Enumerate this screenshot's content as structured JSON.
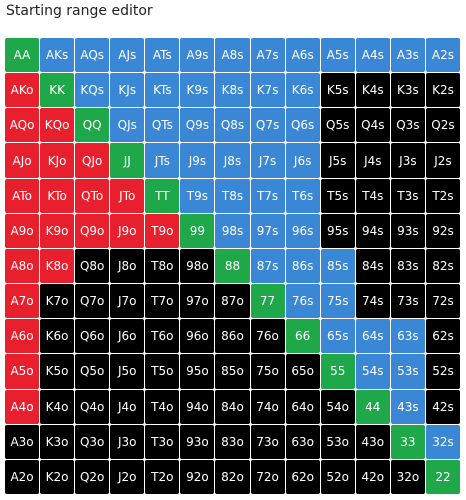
{
  "title": "Starting range editor",
  "ranks": [
    "A",
    "K",
    "Q",
    "J",
    "T",
    "9",
    "8",
    "7",
    "6",
    "5",
    "4",
    "3",
    "2"
  ],
  "colors": {
    "pair": "#1ea84a",
    "suited": "#3a87d6",
    "offsuit": "#e8202e",
    "unselected": "#000000"
  },
  "grid": [
    [
      "pair",
      "suited",
      "suited",
      "suited",
      "suited",
      "suited",
      "suited",
      "suited",
      "suited",
      "suited",
      "suited",
      "suited",
      "suited"
    ],
    [
      "offsuit",
      "pair",
      "suited",
      "suited",
      "suited",
      "suited",
      "suited",
      "suited",
      "suited",
      "unselected",
      "unselected",
      "unselected",
      "unselected"
    ],
    [
      "offsuit",
      "offsuit",
      "pair",
      "suited",
      "suited",
      "suited",
      "suited",
      "suited",
      "suited",
      "unselected",
      "unselected",
      "unselected",
      "unselected"
    ],
    [
      "offsuit",
      "offsuit",
      "offsuit",
      "pair",
      "suited",
      "suited",
      "suited",
      "suited",
      "suited",
      "unselected",
      "unselected",
      "unselected",
      "unselected"
    ],
    [
      "offsuit",
      "offsuit",
      "offsuit",
      "offsuit",
      "pair",
      "suited",
      "suited",
      "suited",
      "suited",
      "unselected",
      "unselected",
      "unselected",
      "unselected"
    ],
    [
      "offsuit",
      "offsuit",
      "offsuit",
      "offsuit",
      "offsuit",
      "pair",
      "suited",
      "suited",
      "suited",
      "unselected",
      "unselected",
      "unselected",
      "unselected"
    ],
    [
      "offsuit",
      "offsuit",
      "unselected",
      "unselected",
      "unselected",
      "unselected",
      "pair",
      "suited",
      "suited",
      "suited",
      "unselected",
      "unselected",
      "unselected"
    ],
    [
      "offsuit",
      "unselected",
      "unselected",
      "unselected",
      "unselected",
      "unselected",
      "unselected",
      "pair",
      "suited",
      "suited",
      "unselected",
      "unselected",
      "unselected"
    ],
    [
      "offsuit",
      "unselected",
      "unselected",
      "unselected",
      "unselected",
      "unselected",
      "unselected",
      "unselected",
      "pair",
      "suited",
      "suited",
      "suited",
      "unselected"
    ],
    [
      "offsuit",
      "unselected",
      "unselected",
      "unselected",
      "unselected",
      "unselected",
      "unselected",
      "unselected",
      "unselected",
      "pair",
      "suited",
      "suited",
      "unselected"
    ],
    [
      "offsuit",
      "unselected",
      "unselected",
      "unselected",
      "unselected",
      "unselected",
      "unselected",
      "unselected",
      "unselected",
      "unselected",
      "pair",
      "suited",
      "unselected"
    ],
    [
      "unselected",
      "unselected",
      "unselected",
      "unselected",
      "unselected",
      "unselected",
      "unselected",
      "unselected",
      "unselected",
      "unselected",
      "unselected",
      "pair",
      "suited"
    ],
    [
      "unselected",
      "unselected",
      "unselected",
      "unselected",
      "unselected",
      "unselected",
      "unselected",
      "unselected",
      "unselected",
      "unselected",
      "unselected",
      "unselected",
      "pair"
    ]
  ]
}
